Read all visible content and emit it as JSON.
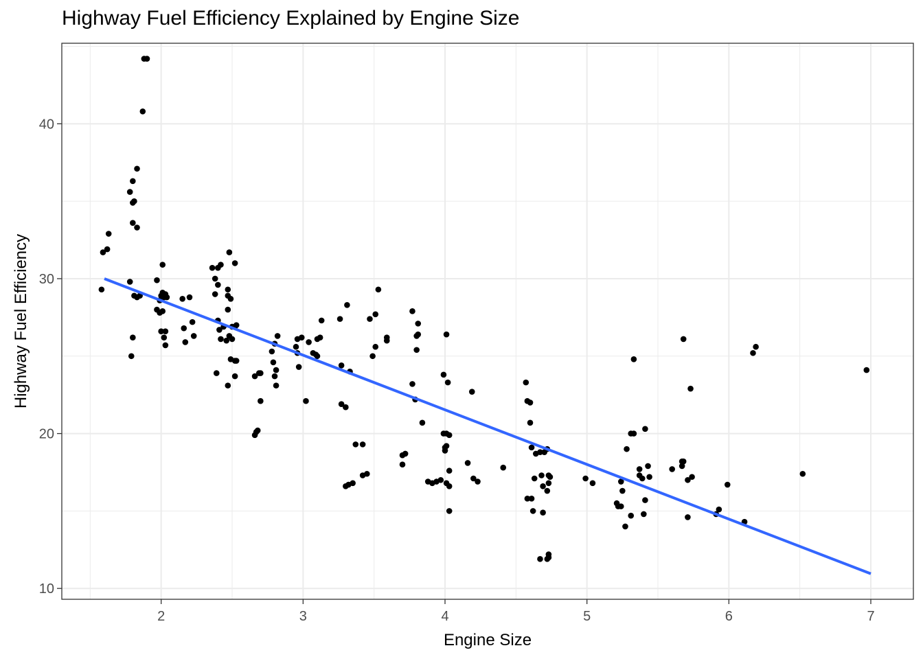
{
  "chart_data": {
    "type": "scatter",
    "title": "Highway Fuel Efficiency Explained by Engine Size",
    "xlabel": "Engine Size",
    "ylabel": "Highway Fuel Efficiency",
    "xlim": [
      1.3,
      7.3
    ],
    "ylim": [
      9.3,
      45.2
    ],
    "xticks": [
      "2",
      "3",
      "4",
      "5",
      "6",
      "7"
    ],
    "yticks": [
      "10",
      "20",
      "30",
      "40"
    ],
    "grid": true,
    "point_color": "#000000",
    "fit_color": "#3366FF",
    "fit_line": {
      "x": [
        1.6,
        7.0
      ],
      "y": [
        30.0,
        10.95
      ]
    },
    "points": [
      [
        1.88,
        44.2
      ],
      [
        1.9,
        44.2
      ],
      [
        1.87,
        40.8
      ],
      [
        1.83,
        37.1
      ],
      [
        1.8,
        36.3
      ],
      [
        1.78,
        35.6
      ],
      [
        1.8,
        34.9
      ],
      [
        1.81,
        35.0
      ],
      [
        1.8,
        33.6
      ],
      [
        1.83,
        33.3
      ],
      [
        1.63,
        32.9
      ],
      [
        1.59,
        31.7
      ],
      [
        1.62,
        31.9
      ],
      [
        1.58,
        29.3
      ],
      [
        1.78,
        29.8
      ],
      [
        1.81,
        28.9
      ],
      [
        1.83,
        28.8
      ],
      [
        1.85,
        28.9
      ],
      [
        1.8,
        26.2
      ],
      [
        1.79,
        25.0
      ],
      [
        2.01,
        30.9
      ],
      [
        1.97,
        29.9
      ],
      [
        1.97,
        28.0
      ],
      [
        1.99,
        27.8
      ],
      [
        2.01,
        27.9
      ],
      [
        2.0,
        28.9
      ],
      [
        2.01,
        29.1
      ],
      [
        2.03,
        29.0
      ],
      [
        2.02,
        28.8
      ],
      [
        2.04,
        28.8
      ],
      [
        1.99,
        28.6
      ],
      [
        2.0,
        26.6
      ],
      [
        2.03,
        26.6
      ],
      [
        2.02,
        26.2
      ],
      [
        2.03,
        25.7
      ],
      [
        2.15,
        28.7
      ],
      [
        2.2,
        28.8
      ],
      [
        2.16,
        26.8
      ],
      [
        2.17,
        25.9
      ],
      [
        2.22,
        27.2
      ],
      [
        2.23,
        26.3
      ],
      [
        2.36,
        30.7
      ],
      [
        2.4,
        30.7
      ],
      [
        2.42,
        30.9
      ],
      [
        2.38,
        30.0
      ],
      [
        2.4,
        29.6
      ],
      [
        2.38,
        29.0
      ],
      [
        2.4,
        27.3
      ],
      [
        2.41,
        26.7
      ],
      [
        2.44,
        26.9
      ],
      [
        2.42,
        26.1
      ],
      [
        2.39,
        23.9
      ],
      [
        2.48,
        31.7
      ],
      [
        2.52,
        31.0
      ],
      [
        2.47,
        29.3
      ],
      [
        2.47,
        28.9
      ],
      [
        2.49,
        28.7
      ],
      [
        2.47,
        28.0
      ],
      [
        2.5,
        26.9
      ],
      [
        2.53,
        27.0
      ],
      [
        2.52,
        26.9
      ],
      [
        2.48,
        26.3
      ],
      [
        2.5,
        26.1
      ],
      [
        2.46,
        26.0
      ],
      [
        2.49,
        24.8
      ],
      [
        2.52,
        24.7
      ],
      [
        2.53,
        24.7
      ],
      [
        2.52,
        23.7
      ],
      [
        2.47,
        23.1
      ],
      [
        2.69,
        23.9
      ],
      [
        2.7,
        23.9
      ],
      [
        2.66,
        23.7
      ],
      [
        2.7,
        22.1
      ],
      [
        2.68,
        20.2
      ],
      [
        2.66,
        19.9
      ],
      [
        2.67,
        20.1
      ],
      [
        2.8,
        25.8
      ],
      [
        2.78,
        25.3
      ],
      [
        2.79,
        24.6
      ],
      [
        2.82,
        26.3
      ],
      [
        2.81,
        24.1
      ],
      [
        2.8,
        23.7
      ],
      [
        2.81,
        23.1
      ],
      [
        2.96,
        26.1
      ],
      [
        2.99,
        26.2
      ],
      [
        2.95,
        25.6
      ],
      [
        2.96,
        25.2
      ],
      [
        2.97,
        24.3
      ],
      [
        3.02,
        22.1
      ],
      [
        3.04,
        25.9
      ],
      [
        3.07,
        25.2
      ],
      [
        3.1,
        25.0
      ],
      [
        3.09,
        25.1
      ],
      [
        3.1,
        26.1
      ],
      [
        3.12,
        26.2
      ],
      [
        3.13,
        27.3
      ],
      [
        3.26,
        27.4
      ],
      [
        3.27,
        24.4
      ],
      [
        3.31,
        28.3
      ],
      [
        3.33,
        24.0
      ],
      [
        3.27,
        21.9
      ],
      [
        3.3,
        21.7
      ],
      [
        3.3,
        16.6
      ],
      [
        3.32,
        16.7
      ],
      [
        3.35,
        16.8
      ],
      [
        3.37,
        19.3
      ],
      [
        3.42,
        19.3
      ],
      [
        3.42,
        17.3
      ],
      [
        3.45,
        17.4
      ],
      [
        3.47,
        27.4
      ],
      [
        3.51,
        27.7
      ],
      [
        3.53,
        29.3
      ],
      [
        3.49,
        25.0
      ],
      [
        3.51,
        25.6
      ],
      [
        3.59,
        26.2
      ],
      [
        3.59,
        26.0
      ],
      [
        3.77,
        27.9
      ],
      [
        3.8,
        26.3
      ],
      [
        3.81,
        26.4
      ],
      [
        3.81,
        27.1
      ],
      [
        3.8,
        25.4
      ],
      [
        3.77,
        23.2
      ],
      [
        3.79,
        22.2
      ],
      [
        3.84,
        20.7
      ],
      [
        3.7,
        18.6
      ],
      [
        3.72,
        18.7
      ],
      [
        3.7,
        18.0
      ],
      [
        3.88,
        16.9
      ],
      [
        3.91,
        16.8
      ],
      [
        3.94,
        16.9
      ],
      [
        3.97,
        17.0
      ],
      [
        3.99,
        23.8
      ],
      [
        4.02,
        23.3
      ],
      [
        4.01,
        26.4
      ],
      [
        3.99,
        20.0
      ],
      [
        4.01,
        20.0
      ],
      [
        4.03,
        19.9
      ],
      [
        4.0,
        19.1
      ],
      [
        4.01,
        19.2
      ],
      [
        4.0,
        18.9
      ],
      [
        4.03,
        17.6
      ],
      [
        4.01,
        16.8
      ],
      [
        4.03,
        16.6
      ],
      [
        4.03,
        15.0
      ],
      [
        4.19,
        22.7
      ],
      [
        4.16,
        18.1
      ],
      [
        4.2,
        17.1
      ],
      [
        4.23,
        16.9
      ],
      [
        4.41,
        17.8
      ],
      [
        4.57,
        23.3
      ],
      [
        4.58,
        22.1
      ],
      [
        4.6,
        22.0
      ],
      [
        4.6,
        20.7
      ],
      [
        4.61,
        19.1
      ],
      [
        4.64,
        18.7
      ],
      [
        4.67,
        18.8
      ],
      [
        4.7,
        18.8
      ],
      [
        4.72,
        19.0
      ],
      [
        4.63,
        17.1
      ],
      [
        4.68,
        17.3
      ],
      [
        4.73,
        17.3
      ],
      [
        4.74,
        17.2
      ],
      [
        4.73,
        16.8
      ],
      [
        4.69,
        16.6
      ],
      [
        4.72,
        16.3
      ],
      [
        4.58,
        15.8
      ],
      [
        4.61,
        15.8
      ],
      [
        4.62,
        15.0
      ],
      [
        4.69,
        14.9
      ],
      [
        4.73,
        12.2
      ],
      [
        4.67,
        11.9
      ],
      [
        4.72,
        11.9
      ],
      [
        4.73,
        12.0
      ],
      [
        4.99,
        17.1
      ],
      [
        5.04,
        16.8
      ],
      [
        5.21,
        15.5
      ],
      [
        5.22,
        15.3
      ],
      [
        5.24,
        15.3
      ],
      [
        5.25,
        16.3
      ],
      [
        5.24,
        16.9
      ],
      [
        5.28,
        19.0
      ],
      [
        5.27,
        14.0
      ],
      [
        5.31,
        14.7
      ],
      [
        5.31,
        20.0
      ],
      [
        5.33,
        20.0
      ],
      [
        5.33,
        24.8
      ],
      [
        5.37,
        17.7
      ],
      [
        5.37,
        17.3
      ],
      [
        5.39,
        17.1
      ],
      [
        5.41,
        20.3
      ],
      [
        5.43,
        17.9
      ],
      [
        5.41,
        15.7
      ],
      [
        5.4,
        14.8
      ],
      [
        5.44,
        17.2
      ],
      [
        5.6,
        17.7
      ],
      [
        5.67,
        17.9
      ],
      [
        5.67,
        18.2
      ],
      [
        5.68,
        18.2
      ],
      [
        5.68,
        26.1
      ],
      [
        5.73,
        22.9
      ],
      [
        5.71,
        17.0
      ],
      [
        5.74,
        17.2
      ],
      [
        5.71,
        14.6
      ],
      [
        5.91,
        14.8
      ],
      [
        5.93,
        15.1
      ],
      [
        5.99,
        16.7
      ],
      [
        6.11,
        14.3
      ],
      [
        6.17,
        25.2
      ],
      [
        6.19,
        25.6
      ],
      [
        6.52,
        17.4
      ],
      [
        6.97,
        24.1
      ]
    ]
  }
}
